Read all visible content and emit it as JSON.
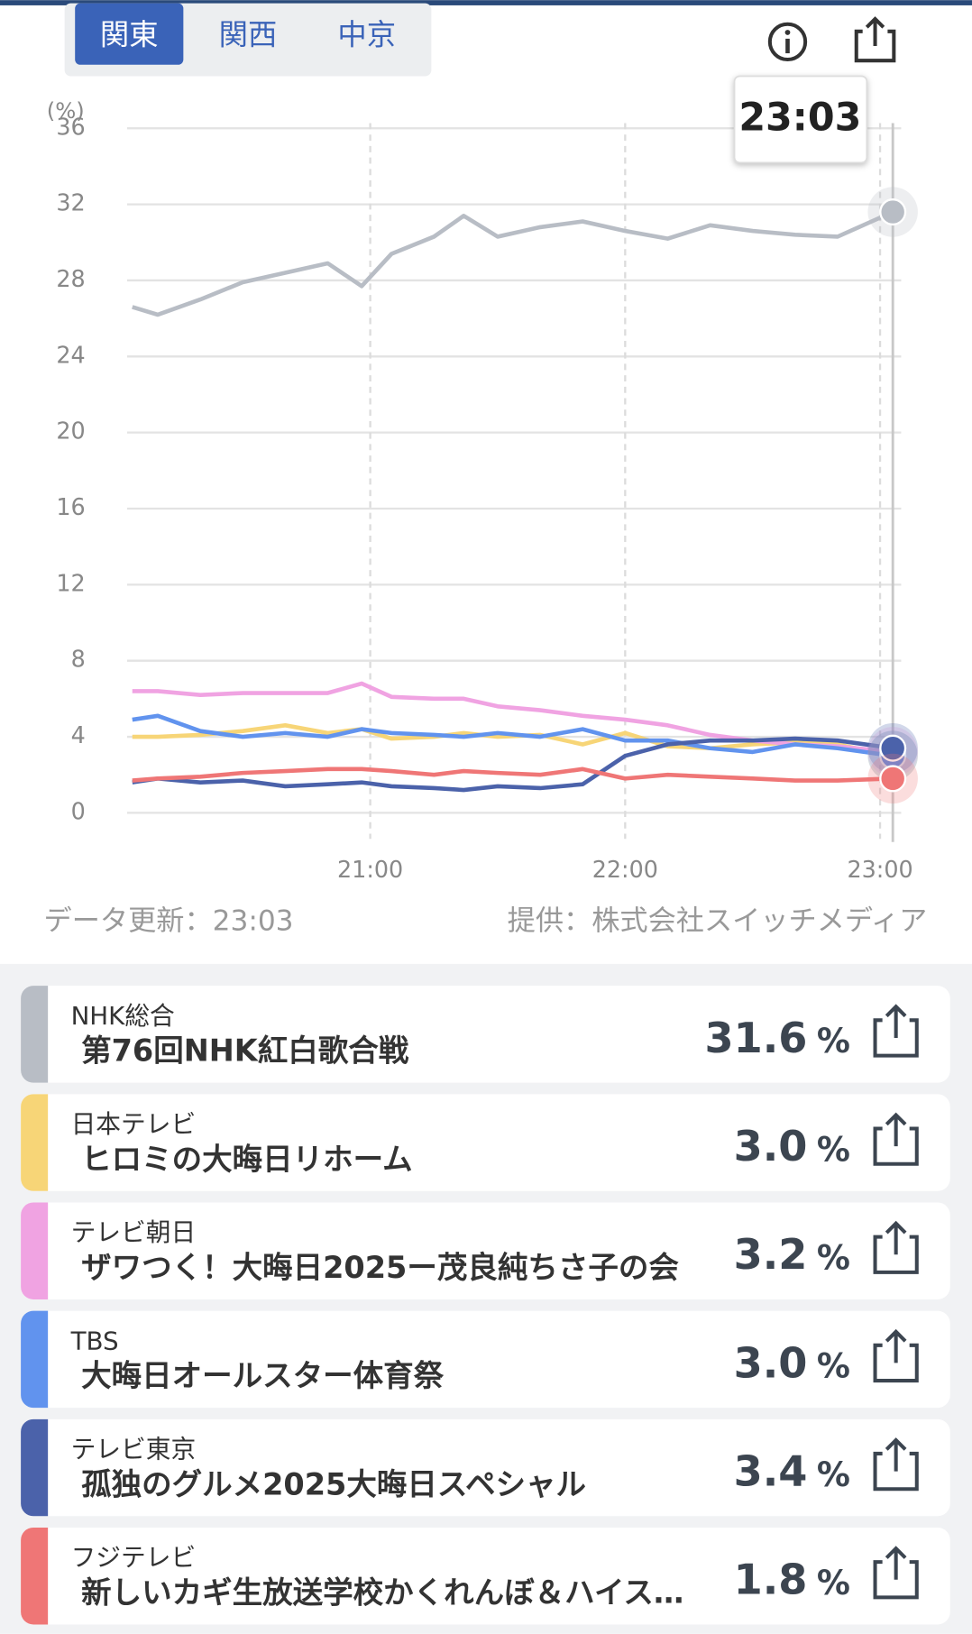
{
  "tabs": [
    "関東",
    "関西",
    "中京"
  ],
  "chart_data": {
    "type": "line",
    "y_unit": "(%)",
    "tooltip": "23:03",
    "x": [
      "20:04",
      "20:10",
      "20:20",
      "20:30",
      "20:40",
      "20:50",
      "20:58",
      "21:05",
      "21:15",
      "21:22",
      "21:30",
      "21:40",
      "21:50",
      "22:00",
      "22:10",
      "22:20",
      "22:30",
      "22:40",
      "22:50",
      "23:03"
    ],
    "xlim": [
      "20:04",
      "23:03"
    ],
    "xticks": [
      "21:00",
      "22:00",
      "23:00"
    ],
    "ylim": [
      0,
      36
    ],
    "yticks": [
      0,
      4,
      8,
      12,
      16,
      20,
      24,
      28,
      32,
      36
    ],
    "grid": true,
    "series": [
      {
        "color": "#b8bdc5",
        "values": [
          26.6,
          26.2,
          27.0,
          27.9,
          28.4,
          28.9,
          27.7,
          29.4,
          30.3,
          31.4,
          30.3,
          30.8,
          31.1,
          30.6,
          30.2,
          30.9,
          30.6,
          30.4,
          30.3,
          31.6
        ]
      },
      {
        "color": "#f7d577",
        "values": [
          4.0,
          4.0,
          4.1,
          4.3,
          4.6,
          4.2,
          4.4,
          3.9,
          4.0,
          4.2,
          4.0,
          4.1,
          3.6,
          4.2,
          3.5,
          3.4,
          3.6,
          3.7,
          3.6,
          3.0
        ]
      },
      {
        "color": "#f0a3e2",
        "values": [
          6.4,
          6.4,
          6.2,
          6.3,
          6.3,
          6.3,
          6.8,
          6.1,
          6.0,
          6.0,
          5.6,
          5.4,
          5.1,
          4.9,
          4.6,
          4.1,
          3.8,
          3.6,
          3.5,
          3.2
        ]
      },
      {
        "color": "#6193ee",
        "values": [
          4.9,
          5.1,
          4.3,
          4.0,
          4.2,
          4.0,
          4.4,
          4.2,
          4.1,
          4.0,
          4.2,
          4.0,
          4.4,
          3.8,
          3.8,
          3.4,
          3.2,
          3.6,
          3.4,
          3.0
        ]
      },
      {
        "color": "#4b62aa",
        "values": [
          1.6,
          1.8,
          1.6,
          1.7,
          1.4,
          1.5,
          1.6,
          1.4,
          1.3,
          1.2,
          1.4,
          1.3,
          1.5,
          3.0,
          3.6,
          3.8,
          3.8,
          3.9,
          3.8,
          3.4
        ]
      },
      {
        "color": "#ef7676",
        "values": [
          1.7,
          1.8,
          1.9,
          2.1,
          2.2,
          2.3,
          2.3,
          2.2,
          2.0,
          2.2,
          2.1,
          2.0,
          2.3,
          1.8,
          2.0,
          1.9,
          1.8,
          1.7,
          1.7,
          1.8
        ]
      }
    ]
  },
  "footer": {
    "updated": "データ更新：23:03",
    "source": "提供：株式会社スイッチメディア"
  },
  "programs": [
    {
      "channel": "NHK総合",
      "title": "第76回NHK紅白歌合戦",
      "rating": 31.6,
      "unit": "%",
      "color": "#b8bdc5"
    },
    {
      "channel": "日本テレビ",
      "title": "ヒロミの大晦日リホーム",
      "rating": 3.0,
      "rating_label": "3.0",
      "unit": "%",
      "color": "#f7d577"
    },
    {
      "channel": "テレビ朝日",
      "title": "ザワつく！大晦日2025ー茂良純ちさ子の会",
      "rating": 3.2,
      "unit": "%",
      "color": "#f0a3e2"
    },
    {
      "channel": "TBS",
      "title": "大晦日オールスター体育祭",
      "rating": 3.0,
      "rating_label": "3.0",
      "unit": "%",
      "color": "#6193ee"
    },
    {
      "channel": "テレビ東京",
      "title": "孤独のグルメ2025大晦日スペシャル",
      "rating": 3.4,
      "unit": "%",
      "color": "#4b62aa"
    },
    {
      "channel": "フジテレビ",
      "title": "新しいカギ生放送学校かくれんぼ＆ハイス…",
      "rating": 1.8,
      "unit": "%",
      "color": "#ef7676"
    }
  ]
}
